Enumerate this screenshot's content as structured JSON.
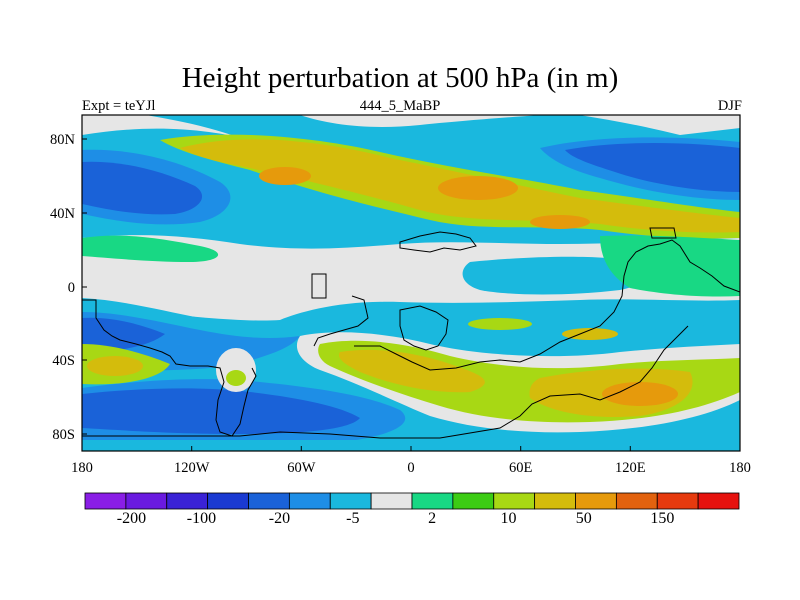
{
  "title": "Height perturbation at 500 hPa (in m)",
  "left_string": "Expt = teYJl",
  "center_string": "444_5_MaBP",
  "right_string": "DJF",
  "map": {
    "x_ticks": [
      "180",
      "120W",
      "60W",
      "0",
      "60E",
      "120E",
      "180"
    ],
    "y_ticks": [
      "80N",
      "40N",
      "0",
      "40S",
      "80S"
    ]
  },
  "colorbar": {
    "colors": [
      "#8a1ee6",
      "#6a1ae0",
      "#3a22d6",
      "#1a3ad2",
      "#1a62d8",
      "#1e8ee6",
      "#1ab8de",
      "#e6e6e6",
      "#18d884",
      "#3ccc14",
      "#a8d814",
      "#d4bc0c",
      "#e69a0c",
      "#e2620e",
      "#e63a0e",
      "#e6120e"
    ],
    "labels": [
      "-200",
      "-100",
      "-20",
      "-5",
      "2",
      "10",
      "50",
      "150"
    ]
  },
  "legend_colors": {
    "strong_negative": "#1a3ad2",
    "moderate_negative": "#1e8ee6",
    "weak_negative": "#1ab8de",
    "near_zero": "#e6e6e6",
    "weak_positive": "#18d884",
    "moderate_positive": "#a8d814",
    "strong_positive": "#d4bc0c",
    "peak_positive": "#e69a0c"
  }
}
